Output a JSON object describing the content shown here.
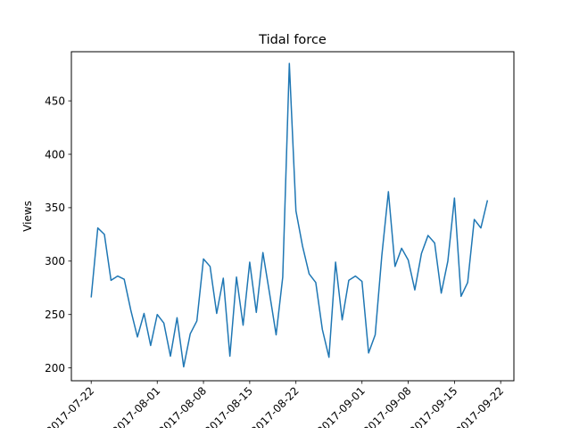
{
  "chart_data": {
    "type": "line",
    "title": "Tidal force",
    "xlabel": "",
    "ylabel": "Views",
    "x_tick_labels": [
      "2017-07-22",
      "2017-08-01",
      "2017-08-08",
      "2017-08-15",
      "2017-08-22",
      "2017-09-01",
      "2017-09-08",
      "2017-09-15",
      "2017-09-22"
    ],
    "y_tick_labels": [
      "200",
      "250",
      "300",
      "350",
      "400",
      "450"
    ],
    "xlim": [
      "2017-07-19",
      "2017-09-24"
    ],
    "ylim": [
      188,
      496
    ],
    "grid": false,
    "legend": "none",
    "series": [
      {
        "color": "#1f77b4",
        "x": [
          "2017-07-22",
          "2017-07-23",
          "2017-07-24",
          "2017-07-25",
          "2017-07-26",
          "2017-07-27",
          "2017-07-28",
          "2017-07-29",
          "2017-07-30",
          "2017-07-31",
          "2017-08-01",
          "2017-08-02",
          "2017-08-03",
          "2017-08-04",
          "2017-08-05",
          "2017-08-06",
          "2017-08-07",
          "2017-08-08",
          "2017-08-09",
          "2017-08-10",
          "2017-08-11",
          "2017-08-12",
          "2017-08-13",
          "2017-08-14",
          "2017-08-15",
          "2017-08-16",
          "2017-08-17",
          "2017-08-18",
          "2017-08-19",
          "2017-08-20",
          "2017-08-21",
          "2017-08-22",
          "2017-08-23",
          "2017-08-24",
          "2017-08-25",
          "2017-08-26",
          "2017-08-27",
          "2017-08-28",
          "2017-08-29",
          "2017-08-30",
          "2017-08-31",
          "2017-09-01",
          "2017-09-02",
          "2017-09-03",
          "2017-09-04",
          "2017-09-05",
          "2017-09-06",
          "2017-09-07",
          "2017-09-08",
          "2017-09-09",
          "2017-09-10",
          "2017-09-11",
          "2017-09-12",
          "2017-09-13",
          "2017-09-14",
          "2017-09-15",
          "2017-09-16",
          "2017-09-17",
          "2017-09-18",
          "2017-09-19",
          "2017-09-20"
        ],
        "values": [
          266,
          331,
          325,
          282,
          286,
          283,
          254,
          229,
          251,
          221,
          250,
          242,
          211,
          247,
          201,
          232,
          244,
          302,
          295,
          251,
          284,
          211,
          285,
          240,
          299,
          252,
          308,
          270,
          231,
          285,
          485,
          347,
          314,
          288,
          280,
          236,
          210,
          299,
          245,
          282,
          286,
          281,
          214,
          231,
          305,
          365,
          295,
          312,
          301,
          273,
          307,
          324,
          317,
          270,
          300,
          359,
          267,
          280,
          339,
          331,
          357
        ]
      }
    ]
  }
}
